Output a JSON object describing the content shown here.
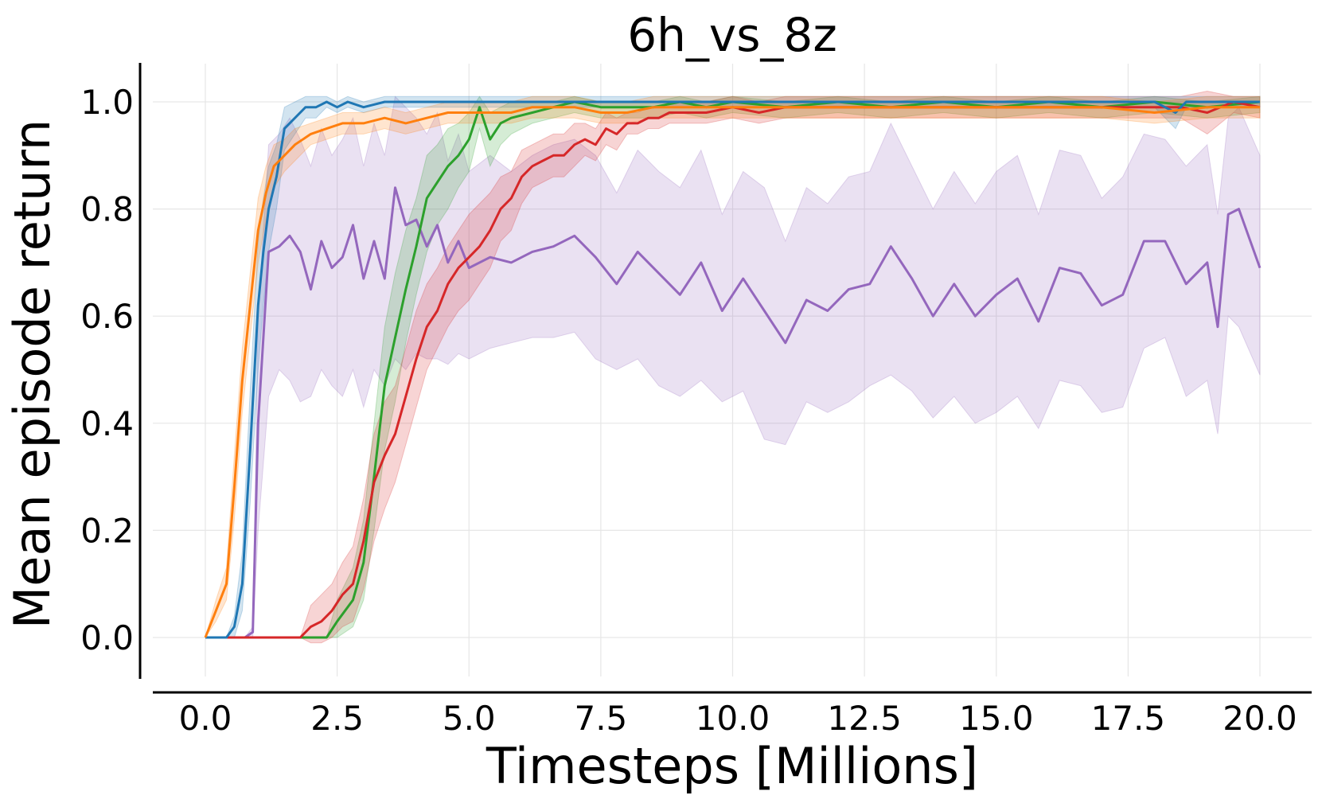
{
  "chart_data": {
    "type": "line",
    "title": "6h_vs_8z",
    "xlabel": "Timesteps [Millions]",
    "ylabel": "Mean episode return",
    "xlim": [
      -0.5,
      20.5
    ],
    "ylim": [
      -0.08,
      1.07
    ],
    "xticks": [
      "0.0",
      "2.5",
      "5.0",
      "7.5",
      "10.0",
      "12.5",
      "15.0",
      "17.5",
      "20.0"
    ],
    "xtick_values": [
      0,
      2.5,
      5,
      7.5,
      10,
      12.5,
      15,
      17.5,
      20
    ],
    "yticks": [
      "0.0",
      "0.2",
      "0.4",
      "0.6",
      "0.8",
      "1.0"
    ],
    "ytick_values": [
      0,
      0.2,
      0.4,
      0.6,
      0.8,
      1.0
    ],
    "grid": true,
    "legend": "none",
    "series": [
      {
        "color": "#9467bd",
        "band_opacity": 0.2,
        "x": [
          0,
          0.5,
          0.75,
          0.9,
          1.0,
          1.2,
          1.4,
          1.6,
          1.8,
          2.0,
          2.2,
          2.4,
          2.6,
          2.8,
          3.0,
          3.2,
          3.4,
          3.6,
          3.8,
          4.0,
          4.2,
          4.4,
          4.6,
          4.8,
          5.0,
          5.4,
          5.8,
          6.2,
          6.6,
          7.0,
          7.4,
          7.8,
          8.2,
          8.6,
          9.0,
          9.4,
          9.8,
          10.2,
          10.6,
          11.0,
          11.4,
          11.8,
          12.2,
          12.6,
          13.0,
          13.4,
          13.8,
          14.2,
          14.6,
          15.0,
          15.4,
          15.8,
          16.2,
          16.6,
          17.0,
          17.4,
          17.8,
          18.2,
          18.6,
          19.0,
          19.2,
          19.4,
          19.6,
          20.0
        ],
        "y": [
          0.0,
          0.0,
          0.0,
          0.01,
          0.4,
          0.72,
          0.73,
          0.75,
          0.72,
          0.65,
          0.74,
          0.69,
          0.71,
          0.77,
          0.67,
          0.74,
          0.67,
          0.84,
          0.77,
          0.78,
          0.73,
          0.77,
          0.7,
          0.74,
          0.69,
          0.71,
          0.7,
          0.72,
          0.73,
          0.75,
          0.71,
          0.66,
          0.72,
          0.68,
          0.64,
          0.7,
          0.61,
          0.67,
          0.61,
          0.55,
          0.63,
          0.61,
          0.65,
          0.66,
          0.73,
          0.67,
          0.6,
          0.66,
          0.6,
          0.64,
          0.67,
          0.59,
          0.69,
          0.68,
          0.62,
          0.64,
          0.74,
          0.74,
          0.66,
          0.7,
          0.58,
          0.79,
          0.8,
          0.69
        ],
        "y_low": [
          0.0,
          0.0,
          0.0,
          0.0,
          0.2,
          0.45,
          0.5,
          0.48,
          0.44,
          0.45,
          0.5,
          0.47,
          0.45,
          0.5,
          0.43,
          0.5,
          0.47,
          0.52,
          0.5,
          0.53,
          0.52,
          0.52,
          0.51,
          0.53,
          0.52,
          0.54,
          0.55,
          0.56,
          0.56,
          0.57,
          0.52,
          0.5,
          0.52,
          0.47,
          0.45,
          0.48,
          0.44,
          0.46,
          0.37,
          0.36,
          0.44,
          0.42,
          0.44,
          0.47,
          0.49,
          0.46,
          0.41,
          0.45,
          0.4,
          0.42,
          0.45,
          0.39,
          0.48,
          0.47,
          0.42,
          0.43,
          0.54,
          0.56,
          0.45,
          0.48,
          0.38,
          0.6,
          0.58,
          0.49
        ],
        "y_high": [
          0.0,
          0.0,
          0.0,
          0.02,
          0.6,
          0.92,
          0.94,
          0.97,
          0.93,
          0.88,
          0.95,
          0.9,
          0.93,
          0.97,
          0.88,
          0.96,
          0.9,
          1.01,
          0.99,
          0.97,
          0.94,
          0.98,
          0.89,
          0.94,
          0.87,
          0.9,
          0.87,
          0.9,
          0.92,
          0.93,
          0.9,
          0.83,
          0.91,
          0.87,
          0.84,
          0.91,
          0.79,
          0.87,
          0.84,
          0.74,
          0.84,
          0.81,
          0.86,
          0.87,
          0.96,
          0.88,
          0.8,
          0.87,
          0.81,
          0.87,
          0.9,
          0.79,
          0.91,
          0.9,
          0.82,
          0.86,
          0.94,
          0.93,
          0.88,
          0.92,
          0.79,
          0.97,
          0.99,
          0.9
        ]
      },
      {
        "color": "#2ca02c",
        "band_opacity": 0.2,
        "x": [
          0,
          1.8,
          2.0,
          2.3,
          2.5,
          2.8,
          3.0,
          3.2,
          3.4,
          3.6,
          3.8,
          4.0,
          4.2,
          4.4,
          4.6,
          4.8,
          5.0,
          5.2,
          5.4,
          5.6,
          5.8,
          6.2,
          6.6,
          7.0,
          7.5,
          8.0,
          8.5,
          9.0,
          9.5,
          10.0,
          11.0,
          12.0,
          13.0,
          14.0,
          15.0,
          16.0,
          17.0,
          18.0,
          19.0,
          20.0
        ],
        "y": [
          0.0,
          0.0,
          0.0,
          0.0,
          0.03,
          0.07,
          0.14,
          0.3,
          0.47,
          0.56,
          0.65,
          0.73,
          0.82,
          0.85,
          0.88,
          0.9,
          0.93,
          0.99,
          0.93,
          0.96,
          0.97,
          0.98,
          0.99,
          1.0,
          0.99,
          0.99,
          0.99,
          1.0,
          0.99,
          1.0,
          0.99,
          1.0,
          0.99,
          1.0,
          0.99,
          1.0,
          0.99,
          1.0,
          0.99,
          1.0
        ],
        "y_low": [
          0.0,
          0.0,
          0.0,
          0.0,
          0.0,
          0.02,
          0.07,
          0.2,
          0.35,
          0.44,
          0.55,
          0.64,
          0.72,
          0.77,
          0.8,
          0.84,
          0.87,
          0.95,
          0.88,
          0.92,
          0.94,
          0.96,
          0.97,
          0.98,
          0.97,
          0.97,
          0.97,
          0.98,
          0.97,
          0.98,
          0.97,
          0.98,
          0.97,
          0.98,
          0.97,
          0.98,
          0.97,
          0.98,
          0.97,
          0.98
        ],
        "y_high": [
          0.0,
          0.0,
          0.0,
          0.0,
          0.07,
          0.13,
          0.22,
          0.4,
          0.58,
          0.68,
          0.76,
          0.82,
          0.9,
          0.92,
          0.95,
          0.96,
          0.98,
          1.01,
          0.98,
          0.99,
          1.0,
          1.0,
          1.0,
          1.01,
          1.0,
          1.0,
          1.0,
          1.01,
          1.0,
          1.01,
          1.0,
          1.01,
          1.0,
          1.01,
          1.0,
          1.01,
          1.0,
          1.01,
          1.0,
          1.01
        ]
      },
      {
        "color": "#d62728",
        "band_opacity": 0.2,
        "x": [
          0,
          1.8,
          2.0,
          2.2,
          2.4,
          2.6,
          2.8,
          3.0,
          3.2,
          3.4,
          3.6,
          3.8,
          4.0,
          4.2,
          4.4,
          4.6,
          4.8,
          5.0,
          5.2,
          5.4,
          5.6,
          5.8,
          6.0,
          6.2,
          6.4,
          6.6,
          6.8,
          7.0,
          7.2,
          7.4,
          7.6,
          7.8,
          8.0,
          8.2,
          8.4,
          8.6,
          8.8,
          9.0,
          9.5,
          10.0,
          10.5,
          11.0,
          12.0,
          13.0,
          14.0,
          15.0,
          16.0,
          17.0,
          18.0,
          18.5,
          19.0,
          19.5,
          20.0
        ],
        "y": [
          0.0,
          0.0,
          0.02,
          0.03,
          0.05,
          0.08,
          0.1,
          0.18,
          0.29,
          0.34,
          0.38,
          0.45,
          0.52,
          0.58,
          0.61,
          0.66,
          0.69,
          0.71,
          0.73,
          0.76,
          0.8,
          0.82,
          0.86,
          0.88,
          0.89,
          0.9,
          0.9,
          0.92,
          0.93,
          0.92,
          0.95,
          0.94,
          0.96,
          0.96,
          0.97,
          0.97,
          0.98,
          0.98,
          0.98,
          0.99,
          0.98,
          0.99,
          0.99,
          0.99,
          0.99,
          0.99,
          0.99,
          0.99,
          0.99,
          0.99,
          0.98,
          1.0,
          0.99
        ],
        "y_low": [
          0.0,
          0.0,
          -0.01,
          -0.01,
          0.0,
          0.02,
          0.03,
          0.09,
          0.18,
          0.24,
          0.29,
          0.36,
          0.43,
          0.5,
          0.54,
          0.58,
          0.61,
          0.63,
          0.66,
          0.69,
          0.74,
          0.76,
          0.81,
          0.84,
          0.85,
          0.86,
          0.86,
          0.88,
          0.9,
          0.89,
          0.92,
          0.91,
          0.94,
          0.94,
          0.95,
          0.95,
          0.96,
          0.96,
          0.96,
          0.97,
          0.96,
          0.97,
          0.97,
          0.97,
          0.97,
          0.97,
          0.97,
          0.97,
          0.97,
          0.97,
          0.94,
          0.98,
          0.97
        ],
        "y_high": [
          0.0,
          0.0,
          0.06,
          0.08,
          0.1,
          0.14,
          0.17,
          0.26,
          0.38,
          0.44,
          0.47,
          0.54,
          0.61,
          0.66,
          0.69,
          0.73,
          0.76,
          0.79,
          0.81,
          0.83,
          0.86,
          0.87,
          0.91,
          0.92,
          0.93,
          0.94,
          0.94,
          0.96,
          0.96,
          0.95,
          0.98,
          0.97,
          0.98,
          0.98,
          0.99,
          0.99,
          1.0,
          1.0,
          1.0,
          1.01,
          1.0,
          1.01,
          1.01,
          1.01,
          1.01,
          1.01,
          1.01,
          1.01,
          1.01,
          1.01,
          1.02,
          1.01,
          1.01
        ]
      },
      {
        "color": "#1f77b4",
        "band_opacity": 0.2,
        "x": [
          0,
          0.4,
          0.55,
          0.7,
          0.85,
          1.0,
          1.1,
          1.2,
          1.35,
          1.5,
          1.7,
          1.9,
          2.1,
          2.3,
          2.5,
          2.7,
          3.0,
          3.4,
          3.8,
          4.2,
          5.0,
          6.0,
          7.0,
          8.0,
          9.0,
          10.0,
          11.0,
          12.0,
          13.0,
          14.0,
          15.0,
          16.0,
          17.0,
          18.0,
          18.2,
          18.4,
          18.6,
          19.0,
          19.5,
          20.0
        ],
        "y": [
          0.0,
          0.0,
          0.02,
          0.1,
          0.35,
          0.62,
          0.72,
          0.8,
          0.86,
          0.95,
          0.97,
          0.99,
          0.99,
          1.0,
          0.99,
          1.0,
          0.99,
          1.0,
          1.0,
          1.0,
          1.0,
          1.0,
          1.0,
          1.0,
          1.0,
          1.0,
          1.0,
          1.0,
          1.0,
          1.0,
          1.0,
          1.0,
          1.0,
          1.0,
          0.99,
          0.98,
          1.0,
          1.0,
          1.0,
          1.0
        ],
        "y_low": [
          0.0,
          0.0,
          0.0,
          0.05,
          0.25,
          0.5,
          0.62,
          0.72,
          0.8,
          0.91,
          0.94,
          0.97,
          0.97,
          0.99,
          0.98,
          0.99,
          0.98,
          0.99,
          0.99,
          0.99,
          0.99,
          0.99,
          0.99,
          0.99,
          0.99,
          0.99,
          0.99,
          0.99,
          0.99,
          0.99,
          0.99,
          0.99,
          0.99,
          0.99,
          0.97,
          0.95,
          0.99,
          0.99,
          0.99,
          0.99
        ],
        "y_high": [
          0.0,
          0.0,
          0.04,
          0.16,
          0.46,
          0.74,
          0.82,
          0.88,
          0.92,
          0.99,
          1.0,
          1.01,
          1.01,
          1.01,
          1.0,
          1.01,
          1.0,
          1.01,
          1.01,
          1.01,
          1.01,
          1.01,
          1.01,
          1.01,
          1.01,
          1.01,
          1.01,
          1.01,
          1.01,
          1.01,
          1.01,
          1.01,
          1.01,
          1.01,
          1.01,
          1.01,
          1.01,
          1.01,
          1.01,
          1.01
        ]
      },
      {
        "color": "#ff7f0e",
        "band_opacity": 0.2,
        "x": [
          0,
          0.2,
          0.4,
          0.55,
          0.7,
          0.85,
          1.0,
          1.15,
          1.3,
          1.5,
          1.7,
          2.0,
          2.3,
          2.6,
          3.0,
          3.4,
          3.8,
          4.2,
          4.6,
          5.0,
          5.4,
          5.8,
          6.2,
          6.6,
          7.0,
          7.5,
          8.0,
          8.5,
          9.0,
          9.5,
          10.0,
          11.0,
          12.0,
          13.0,
          14.0,
          15.0,
          16.0,
          17.0,
          18.0,
          19.0,
          20.0
        ],
        "y": [
          0.0,
          0.05,
          0.1,
          0.28,
          0.48,
          0.62,
          0.76,
          0.83,
          0.88,
          0.9,
          0.92,
          0.94,
          0.95,
          0.96,
          0.96,
          0.97,
          0.96,
          0.97,
          0.98,
          0.98,
          0.98,
          0.98,
          0.99,
          0.99,
          0.99,
          0.98,
          0.98,
          0.99,
          0.99,
          0.99,
          0.99,
          0.99,
          0.99,
          0.99,
          0.99,
          0.99,
          0.99,
          0.99,
          0.98,
          0.99,
          0.99
        ],
        "y_low": [
          0.0,
          0.03,
          0.07,
          0.22,
          0.42,
          0.56,
          0.7,
          0.78,
          0.84,
          0.87,
          0.89,
          0.92,
          0.93,
          0.94,
          0.94,
          0.95,
          0.94,
          0.95,
          0.96,
          0.96,
          0.96,
          0.96,
          0.97,
          0.97,
          0.97,
          0.96,
          0.96,
          0.97,
          0.97,
          0.97,
          0.97,
          0.97,
          0.97,
          0.97,
          0.97,
          0.97,
          0.97,
          0.97,
          0.96,
          0.97,
          0.97
        ],
        "y_high": [
          0.0,
          0.07,
          0.13,
          0.34,
          0.54,
          0.68,
          0.82,
          0.88,
          0.92,
          0.93,
          0.95,
          0.96,
          0.97,
          0.98,
          0.98,
          0.99,
          0.98,
          0.99,
          1.0,
          1.0,
          1.0,
          1.0,
          1.01,
          1.01,
          1.01,
          1.0,
          1.0,
          1.01,
          1.01,
          1.01,
          1.01,
          1.01,
          1.01,
          1.01,
          1.01,
          1.01,
          1.01,
          1.01,
          1.0,
          1.01,
          1.01
        ]
      }
    ]
  }
}
